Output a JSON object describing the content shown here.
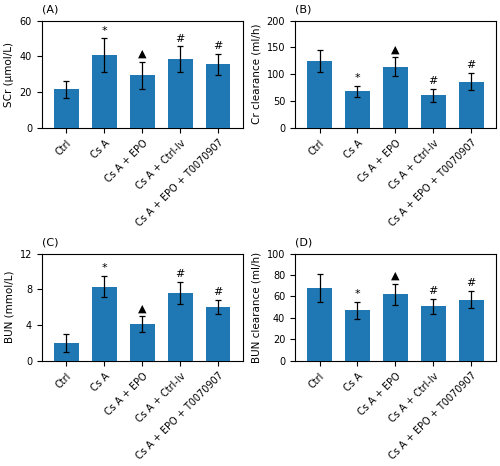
{
  "chart_data": [
    {
      "type": "bar",
      "title": "(A)",
      "ylabel": "SCr (μmol/L)",
      "categories": [
        "Ctrl",
        "Cs A",
        "Cs A + EPO",
        "Cs A + Ctrl-Iv",
        "Cs A + EPO + T0070907"
      ],
      "values": [
        21.5,
        40.5,
        29.5,
        38.5,
        35.5
      ],
      "errors": [
        4.5,
        9.5,
        7.5,
        7.0,
        6.0
      ],
      "annotations": [
        null,
        "*",
        "▲",
        "#",
        "#"
      ],
      "ylim": [
        0,
        60
      ],
      "yticks": [
        0,
        20,
        40,
        60
      ],
      "grid": false
    },
    {
      "type": "bar",
      "title": "(B)",
      "ylabel": "Cr clearance (ml/h)",
      "categories": [
        "Ctrl",
        "Cs A",
        "Cs A + EPO",
        "Cs A + Ctrl-Iv",
        "Cs A + EPO + T0070907"
      ],
      "values": [
        125,
        68,
        114,
        61,
        86
      ],
      "errors": [
        20,
        10,
        18,
        12,
        16
      ],
      "annotations": [
        null,
        "*",
        "▲",
        "#",
        "#"
      ],
      "ylim": [
        0,
        200
      ],
      "yticks": [
        0,
        50,
        100,
        150,
        200
      ],
      "grid": false
    },
    {
      "type": "bar",
      "title": "(C)",
      "ylabel": "BUN (mmol/L)",
      "categories": [
        "Ctrl",
        "Cs A",
        "Cs A + EPO",
        "Cs A + Ctrl-Iv",
        "Cs A + EPO + T0070907"
      ],
      "values": [
        2.0,
        8.3,
        4.1,
        7.6,
        6.0
      ],
      "errors": [
        1.0,
        1.2,
        0.9,
        1.2,
        0.8
      ],
      "annotations": [
        null,
        "*",
        "▲",
        "#",
        "#"
      ],
      "ylim": [
        0,
        12
      ],
      "yticks": [
        0,
        4,
        8,
        12
      ],
      "grid": false
    },
    {
      "type": "bar",
      "title": "(D)",
      "ylabel": "BUN clearance (ml/h)",
      "categories": [
        "Ctrl",
        "Cs A",
        "Cs A + EPO",
        "Cs A + Ctrl-Iv",
        "Cs A + EPO + T0070907"
      ],
      "values": [
        68,
        47,
        62,
        51,
        57
      ],
      "errors": [
        13,
        8,
        10,
        7,
        8
      ],
      "annotations": [
        null,
        "*",
        "▲",
        "#",
        "#"
      ],
      "ylim": [
        0,
        100
      ],
      "yticks": [
        0,
        20,
        40,
        60,
        80,
        100
      ],
      "grid": false
    }
  ]
}
